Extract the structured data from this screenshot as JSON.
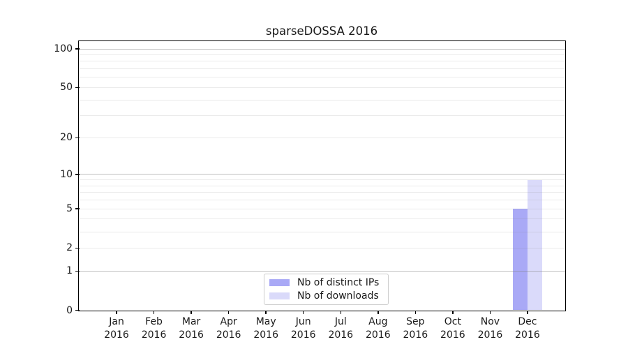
{
  "chart_data": {
    "type": "bar",
    "title": "sparseDOSSA 2016",
    "categories": [
      "Jan 2016",
      "Feb 2016",
      "Mar 2016",
      "Apr 2016",
      "May 2016",
      "Jun 2016",
      "Jul 2016",
      "Aug 2016",
      "Sep 2016",
      "Oct 2016",
      "Nov 2016",
      "Dec 2016"
    ],
    "series": [
      {
        "name": "Nb of distinct IPs",
        "color": "#a9a9f6",
        "values": [
          0,
          0,
          0,
          0,
          0,
          0,
          0,
          0,
          0,
          0,
          0,
          5
        ]
      },
      {
        "name": "Nb of downloads",
        "color": "#dadafa",
        "values": [
          0,
          0,
          0,
          0,
          0,
          0,
          0,
          0,
          0,
          0,
          0,
          9
        ]
      }
    ],
    "xlabel": "",
    "ylabel": "",
    "y_scale": "log10(1+y)",
    "ylim": [
      0,
      114
    ],
    "y_ticks": [
      0,
      1,
      2,
      5,
      10,
      20,
      50,
      100
    ],
    "y_gridlines": {
      "major": [
        1,
        10,
        100
      ],
      "minor": [
        2,
        3,
        4,
        5,
        6,
        7,
        8,
        9,
        20,
        30,
        40,
        50,
        60,
        70,
        80,
        90
      ]
    },
    "grid": true,
    "legend_position": "lower center"
  }
}
